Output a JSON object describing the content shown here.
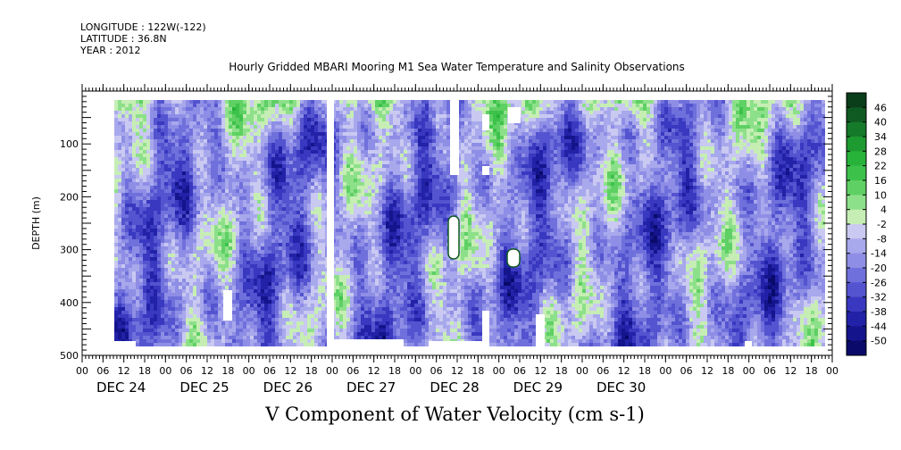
{
  "header": {
    "longitude": "LONGITUDE : 122W(-122)",
    "latitude": "LATITUDE : 36.8N",
    "year": "YEAR : 2012"
  },
  "chart_data": {
    "type": "heatmap",
    "title": "Hourly Gridded MBARI Mooring M1 Sea Water Temperature and Salinity Observations",
    "variable_title": "V Component of Water Velocity (cm s-1)",
    "ylabel": "DEPTH (m)",
    "ylim": [
      500,
      0
    ],
    "y_ticks": [
      100,
      200,
      300,
      400,
      500
    ],
    "x_hour_ticks": [
      "00",
      "06",
      "12",
      "18",
      "00",
      "06",
      "12",
      "18",
      "00",
      "06",
      "12",
      "18",
      "00",
      "06",
      "12",
      "18",
      "00",
      "06",
      "12",
      "18",
      "00",
      "06",
      "12",
      "18",
      "00",
      "06",
      "12",
      "18",
      "00",
      "06",
      "12",
      "18",
      "00",
      "06",
      "12",
      "18",
      "00"
    ],
    "x_day_labels": [
      "DEC 24",
      "DEC 25",
      "DEC 26",
      "DEC 27",
      "DEC 28",
      "DEC 29",
      "DEC 30"
    ],
    "colorbar": {
      "ticks": [
        "46",
        "40",
        "34",
        "28",
        "22",
        "16",
        "10",
        "4",
        "-2",
        "-8",
        "-14",
        "-20",
        "-26",
        "-32",
        "-38",
        "-44",
        "-50"
      ],
      "colors_top_to_bottom": [
        "#0a3d1a",
        "#0f5a22",
        "#157a2a",
        "#1d9a30",
        "#27b23a",
        "#3cc24a",
        "#5ed064",
        "#8de08a",
        "#c6eeb4",
        "#c9c9f2",
        "#a8a8ec",
        "#8e8ee6",
        "#7070dc",
        "#5454d0",
        "#3838c0",
        "#2222a8",
        "#14148c",
        "#0a0a6a"
      ]
    },
    "grid": false,
    "legend": "right"
  }
}
